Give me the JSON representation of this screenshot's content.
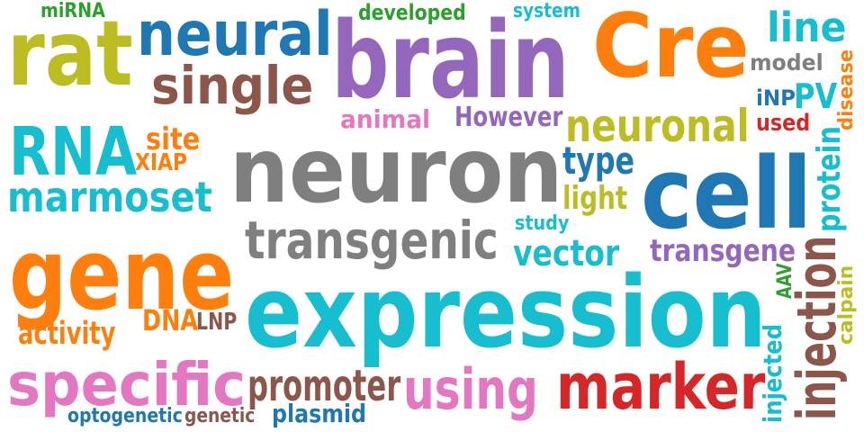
{
  "words": [
    {
      "text": "neuron",
      "color": "#7f7f7f"
    },
    {
      "text": "expression",
      "color": "#17becf"
    },
    {
      "text": "brain",
      "color": "#9467bd"
    },
    {
      "text": "cell",
      "color": "#1f77b4"
    },
    {
      "text": "Cre",
      "color": "#ff7f0e"
    },
    {
      "text": "gene",
      "color": "#ff7f0e"
    },
    {
      "text": "rat",
      "color": "#bcbd22"
    },
    {
      "text": "neural",
      "color": "#1f77b4"
    },
    {
      "text": "specific",
      "color": "#e377c2"
    },
    {
      "text": "marker",
      "color": "#d62728"
    },
    {
      "text": "transgenic",
      "color": "#7f7f7f"
    },
    {
      "text": "single",
      "color": "#8c564b"
    },
    {
      "text": "RNA",
      "color": "#17becf"
    },
    {
      "text": "neuronal",
      "color": "#bcbd22"
    },
    {
      "text": "injection",
      "color": "#8c564b"
    },
    {
      "text": "using",
      "color": "#e377c2"
    },
    {
      "text": "promoter",
      "color": "#8c564b"
    },
    {
      "text": "marmoset",
      "color": "#17becf"
    },
    {
      "text": "line",
      "color": "#17becf"
    },
    {
      "text": "vector",
      "color": "#17becf"
    },
    {
      "text": "transgene",
      "color": "#9467bd"
    },
    {
      "text": "protein",
      "color": "#17becf"
    },
    {
      "text": "type",
      "color": "#1f77b4"
    },
    {
      "text": "light",
      "color": "#bcbd22"
    },
    {
      "text": "PV",
      "color": "#17becf"
    },
    {
      "text": "injected",
      "color": "#17becf"
    },
    {
      "text": "However",
      "color": "#9467bd"
    },
    {
      "text": "animal",
      "color": "#e377c2"
    },
    {
      "text": "model",
      "color": "#7f7f7f"
    },
    {
      "text": "activity",
      "color": "#ff7f0e"
    },
    {
      "text": "DNA",
      "color": "#ff7f0e"
    },
    {
      "text": "site",
      "color": "#ff7f0e"
    },
    {
      "text": "plasmid",
      "color": "#1f77b4"
    },
    {
      "text": "developed",
      "color": "#2ca02c"
    },
    {
      "text": "miRNA",
      "color": "#2ca02c"
    },
    {
      "text": "system",
      "color": "#17becf"
    },
    {
      "text": "disease",
      "color": "#ff7f0e"
    },
    {
      "text": "iNP",
      "color": "#1f77b4"
    },
    {
      "text": "used",
      "color": "#d62728"
    },
    {
      "text": "XIAP",
      "color": "#ff7f0e"
    },
    {
      "text": "study",
      "color": "#17becf"
    },
    {
      "text": "LNP",
      "color": "#8c564b"
    },
    {
      "text": "AAV",
      "color": "#2ca02c"
    },
    {
      "text": "calpain",
      "color": "#bcbd22"
    },
    {
      "text": "optogenetic",
      "color": "#1f77b4"
    },
    {
      "text": "genetic",
      "color": "#8c564b"
    }
  ]
}
